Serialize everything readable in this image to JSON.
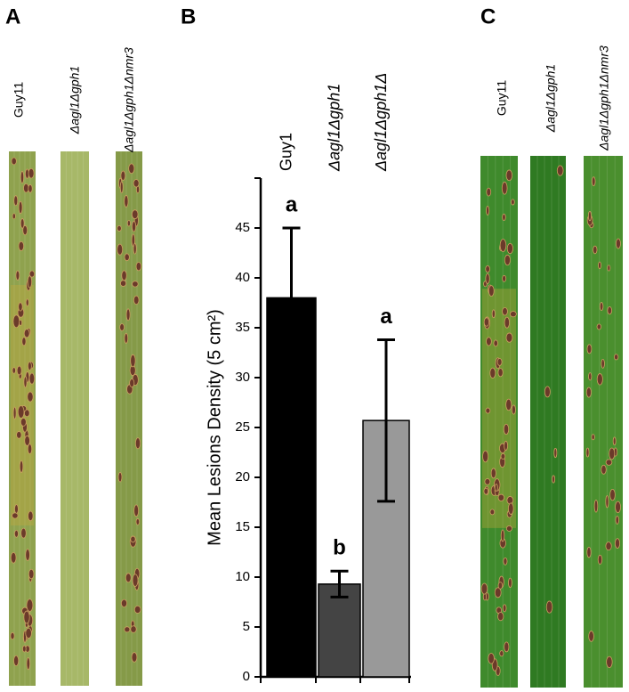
{
  "panels": {
    "a": {
      "label": "A",
      "leaf_labels": [
        "Guy11",
        "Δagl1Δgph1",
        "Δagl1Δgph1Δnmr3"
      ]
    },
    "b": {
      "label": "B"
    },
    "c": {
      "label": "C",
      "leaf_labels": [
        "Guy11",
        "Δagl1Δgph1",
        "Δagl1Δgph1Δnmr3"
      ]
    }
  },
  "chart_data": {
    "type": "bar",
    "y_label": "Mean Lesions Density (5 cm²)",
    "categories": [
      "Guy1",
      "Δagl1Δgph1",
      "Δagl1Δgph1Δ"
    ],
    "values": [
      38,
      9.3,
      25.7
    ],
    "errors": [
      7,
      1.3,
      8.1
    ],
    "annotations": [
      "a",
      "b",
      "a"
    ],
    "colors": [
      "#000000",
      "#444444",
      "#999999"
    ],
    "ylim": [
      0,
      50
    ],
    "yticks": [
      0,
      5,
      10,
      15,
      20,
      25,
      30,
      35,
      40,
      45
    ]
  }
}
